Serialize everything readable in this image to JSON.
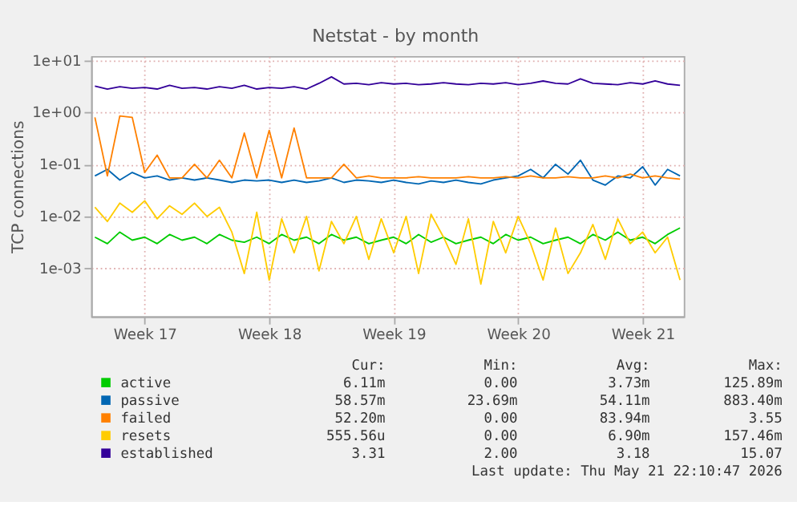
{
  "chart_data": {
    "type": "line",
    "title": "Netstat - by month",
    "ylabel": "TCP connections",
    "categories": [
      null,
      null,
      null,
      null,
      "Week 17",
      null,
      null,
      null,
      null,
      null,
      null,
      null,
      null,
      null,
      "Week 18",
      null,
      null,
      null,
      null,
      null,
      null,
      null,
      null,
      null,
      "Week 19",
      null,
      null,
      null,
      null,
      null,
      null,
      null,
      null,
      null,
      "Week 20",
      null,
      null,
      null,
      null,
      null,
      null,
      null,
      null,
      null,
      "Week 21",
      null,
      null,
      null
    ],
    "ylim": [
      0.00012,
      12
    ],
    "log": true,
    "yticks": [
      {
        "value": 0.001,
        "label": "1e-03"
      },
      {
        "value": 0.01,
        "label": "1e-02"
      },
      {
        "value": 0.1,
        "label": "1e-01"
      },
      {
        "value": 1,
        "label": "1e+00"
      },
      {
        "value": 10,
        "label": "1e+01"
      }
    ],
    "grid": true,
    "legend": "bottom",
    "marker": "none",
    "line_style": "solid",
    "series": [
      {
        "name": "active",
        "color": "#00cc00",
        "values": [
          0.004,
          0.003,
          0.005,
          0.0035,
          0.004,
          0.003,
          0.0045,
          0.0035,
          0.004,
          0.003,
          0.0045,
          0.0035,
          0.0032,
          0.004,
          0.003,
          0.0045,
          0.0035,
          0.004,
          0.003,
          0.0045,
          0.0035,
          0.004,
          0.003,
          0.0035,
          0.004,
          0.003,
          0.0045,
          0.0032,
          0.004,
          0.003,
          0.0035,
          0.004,
          0.003,
          0.0045,
          0.0035,
          0.004,
          0.003,
          0.0035,
          0.004,
          0.003,
          0.0045,
          0.0035,
          0.005,
          0.0035,
          0.004,
          0.003,
          0.0045,
          0.006
        ]
      },
      {
        "name": "passive",
        "color": "#0066b3",
        "values": [
          0.06,
          0.08,
          0.05,
          0.07,
          0.055,
          0.06,
          0.05,
          0.055,
          0.05,
          0.055,
          0.05,
          0.045,
          0.05,
          0.048,
          0.05,
          0.045,
          0.05,
          0.045,
          0.048,
          0.055,
          0.045,
          0.05,
          0.048,
          0.045,
          0.05,
          0.045,
          0.042,
          0.048,
          0.045,
          0.05,
          0.045,
          0.042,
          0.05,
          0.055,
          0.06,
          0.08,
          0.055,
          0.1,
          0.065,
          0.12,
          0.05,
          0.04,
          0.06,
          0.055,
          0.09,
          0.04,
          0.08,
          0.06
        ]
      },
      {
        "name": "failed",
        "color": "#ff8000",
        "values": [
          0.8,
          0.06,
          0.85,
          0.8,
          0.07,
          0.15,
          0.055,
          0.055,
          0.1,
          0.055,
          0.12,
          0.055,
          0.4,
          0.055,
          0.45,
          0.055,
          0.5,
          0.055,
          0.055,
          0.055,
          0.1,
          0.055,
          0.06,
          0.055,
          0.055,
          0.055,
          0.058,
          0.055,
          0.055,
          0.055,
          0.058,
          0.055,
          0.055,
          0.058,
          0.055,
          0.06,
          0.055,
          0.055,
          0.058,
          0.055,
          0.055,
          0.06,
          0.055,
          0.065,
          0.055,
          0.06,
          0.055,
          0.052
        ]
      },
      {
        "name": "resets",
        "color": "#ffcc00",
        "values": [
          0.015,
          0.008,
          0.018,
          0.012,
          0.02,
          0.009,
          0.016,
          0.011,
          0.018,
          0.01,
          0.015,
          0.005,
          0.0008,
          0.012,
          0.0006,
          0.009,
          0.002,
          0.01,
          0.0009,
          0.008,
          0.003,
          0.01,
          0.0015,
          0.009,
          0.002,
          0.01,
          0.0008,
          0.011,
          0.004,
          0.0012,
          0.009,
          0.0005,
          0.008,
          0.002,
          0.01,
          0.003,
          0.0006,
          0.006,
          0.0008,
          0.002,
          0.007,
          0.0015,
          0.009,
          0.003,
          0.005,
          0.002,
          0.004,
          0.0006
        ]
      },
      {
        "name": "established",
        "color": "#330099",
        "values": [
          3.2,
          2.8,
          3.1,
          2.9,
          3.0,
          2.8,
          3.3,
          2.9,
          3.0,
          2.8,
          3.1,
          2.9,
          3.3,
          2.8,
          3.0,
          2.9,
          3.1,
          2.8,
          3.6,
          4.8,
          3.5,
          3.6,
          3.4,
          3.7,
          3.5,
          3.6,
          3.4,
          3.5,
          3.7,
          3.5,
          3.4,
          3.6,
          3.5,
          3.7,
          3.4,
          3.6,
          4.0,
          3.6,
          3.5,
          4.4,
          3.6,
          3.5,
          3.4,
          3.7,
          3.5,
          4.0,
          3.5,
          3.3
        ]
      }
    ],
    "annotations": [
      "Cur:",
      "Min:",
      "Avg:",
      "Max:",
      "6.11m",
      "0.00",
      "3.73m",
      "125.89m",
      "58.57m",
      "23.69m",
      "54.11m",
      "883.40m",
      "52.20m",
      "0.00",
      "83.94m",
      "3.55",
      "555.56u",
      "0.00",
      "6.90m",
      "157.46m",
      "3.31",
      "2.00",
      "3.18",
      "15.07",
      "Last update: Thu May 21 22:10:47 2026"
    ]
  }
}
